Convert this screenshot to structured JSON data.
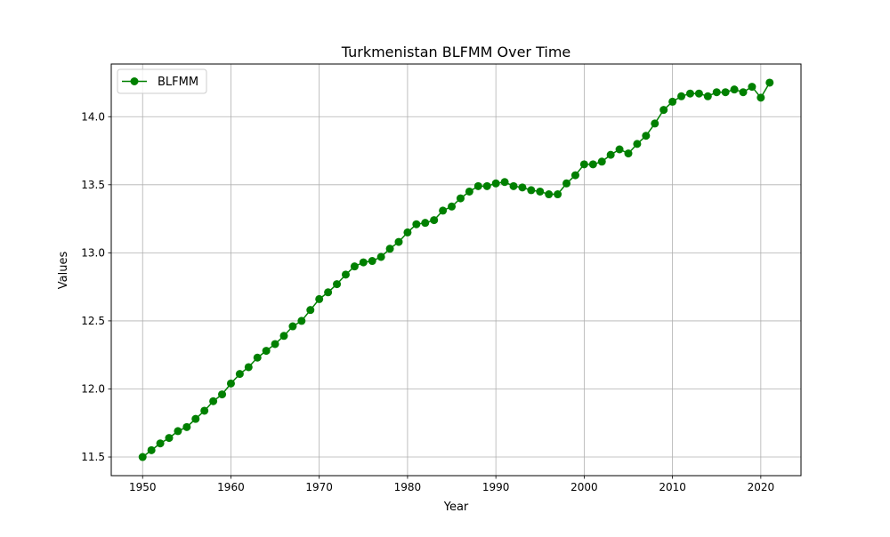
{
  "chart_data": {
    "type": "line",
    "title": "Turkmenistan BLFMM Over Time",
    "xlabel": "Year",
    "ylabel": "Values",
    "xlim": [
      1946.45,
      2024.55
    ],
    "ylim": [
      11.363,
      14.387
    ],
    "x_ticks": [
      1950,
      1960,
      1970,
      1980,
      1990,
      2000,
      2010,
      2020
    ],
    "x_tick_labels": [
      "1950",
      "1960",
      "1970",
      "1980",
      "1990",
      "2000",
      "2010",
      "2020"
    ],
    "y_ticks": [
      11.5,
      12.0,
      12.5,
      13.0,
      13.5,
      14.0
    ],
    "y_tick_labels": [
      "11.5",
      "12.0",
      "12.5",
      "13.0",
      "13.5",
      "14.0"
    ],
    "grid": true,
    "legend_position": "top-left",
    "series": [
      {
        "name": "BLFMM",
        "color": "#008000",
        "marker": "circle",
        "x": [
          1950,
          1951,
          1952,
          1953,
          1954,
          1955,
          1956,
          1957,
          1958,
          1959,
          1960,
          1961,
          1962,
          1963,
          1964,
          1965,
          1966,
          1967,
          1968,
          1969,
          1970,
          1971,
          1972,
          1973,
          1974,
          1975,
          1976,
          1977,
          1978,
          1979,
          1980,
          1981,
          1982,
          1983,
          1984,
          1985,
          1986,
          1987,
          1988,
          1989,
          1990,
          1991,
          1992,
          1993,
          1994,
          1995,
          1996,
          1997,
          1998,
          1999,
          2000,
          2001,
          2002,
          2003,
          2004,
          2005,
          2006,
          2007,
          2008,
          2009,
          2010,
          2011,
          2012,
          2013,
          2014,
          2015,
          2016,
          2017,
          2018,
          2019,
          2020,
          2021
        ],
        "y": [
          11.5,
          11.55,
          11.6,
          11.64,
          11.69,
          11.72,
          11.78,
          11.84,
          11.91,
          11.96,
          12.04,
          12.11,
          12.16,
          12.23,
          12.28,
          12.33,
          12.39,
          12.46,
          12.5,
          12.58,
          12.66,
          12.71,
          12.77,
          12.84,
          12.9,
          12.93,
          12.94,
          12.97,
          13.03,
          13.08,
          13.15,
          13.21,
          13.22,
          13.24,
          13.31,
          13.34,
          13.4,
          13.45,
          13.49,
          13.49,
          13.51,
          13.52,
          13.49,
          13.48,
          13.46,
          13.45,
          13.43,
          13.43,
          13.51,
          13.57,
          13.65,
          13.65,
          13.67,
          13.72,
          13.76,
          13.73,
          13.8,
          13.86,
          13.95,
          14.05,
          14.11,
          14.15,
          14.17,
          14.17,
          14.15,
          14.18,
          14.18,
          14.2,
          14.18,
          14.22,
          14.14,
          14.25
        ]
      }
    ]
  }
}
